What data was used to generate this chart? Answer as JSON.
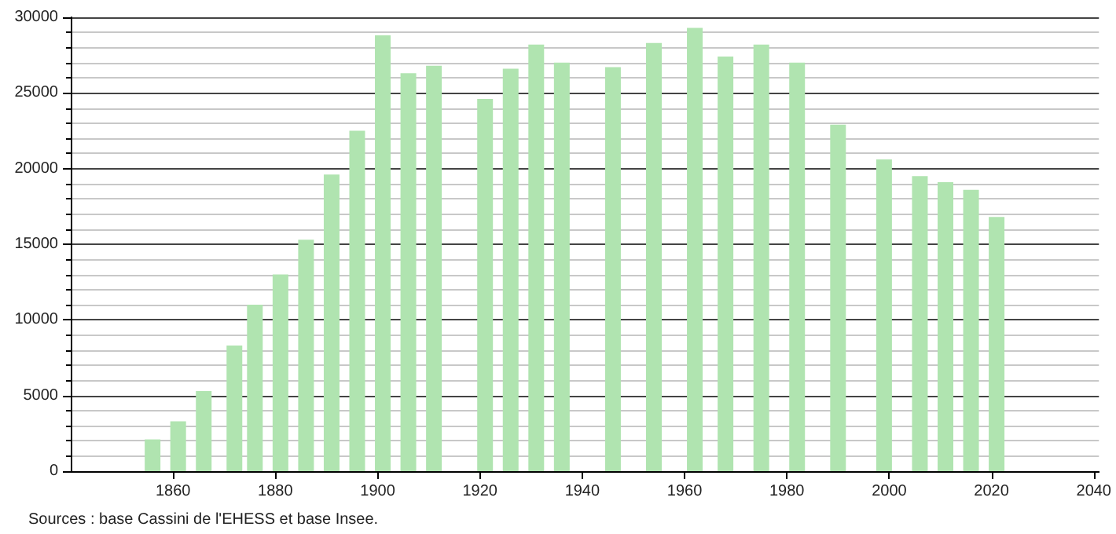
{
  "chart_data": {
    "type": "bar",
    "x": [
      1856,
      1861,
      1866,
      1872,
      1876,
      1881,
      1886,
      1891,
      1896,
      1901,
      1906,
      1911,
      1921,
      1926,
      1931,
      1936,
      1946,
      1954,
      1962,
      1968,
      1975,
      1982,
      1990,
      1999,
      2006,
      2011,
      2016,
      2021
    ],
    "values": [
      2100,
      3300,
      5300,
      8300,
      11000,
      13000,
      15300,
      19600,
      22500,
      28800,
      26300,
      26800,
      24600,
      26600,
      28200,
      27000,
      26700,
      28300,
      29300,
      27400,
      28200,
      27000,
      22900,
      20600,
      19500,
      19100,
      18600,
      16800
    ],
    "color": "#b0e4b0",
    "xlim": [
      1840,
      2041
    ],
    "xticks": [
      1860,
      1880,
      1900,
      1920,
      1940,
      1960,
      1980,
      2000,
      2020,
      2040
    ],
    "ylim": [
      0,
      30000
    ],
    "yticks": [
      0,
      5000,
      10000,
      15000,
      20000,
      25000,
      30000
    ],
    "grid": "y",
    "annotations": [
      "Sources : base Cassini de l'EHESS et base Insee."
    ]
  }
}
